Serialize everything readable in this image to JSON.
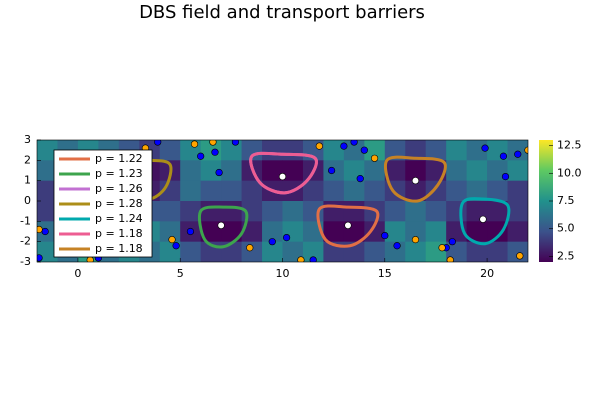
{
  "chart_data": {
    "type": "heatmap",
    "title": "DBS field and transport barriers",
    "colormap": "viridis",
    "clim": [
      2,
      13
    ],
    "cticks": [
      2.5,
      {
        "value": 5,
        "label": "5.0"
      },
      7.5,
      {
        "value": 10,
        "label": "10.0"
      },
      12.5
    ],
    "xlim": [
      -2,
      22
    ],
    "xticks": [
      0,
      5,
      10,
      15,
      20
    ],
    "ylim": [
      -3,
      3
    ],
    "yticks": [
      -3,
      -2,
      -1,
      0,
      1,
      2,
      3
    ],
    "grid": false,
    "legend": "topleft",
    "z": [
      [
        7,
        6,
        7,
        6,
        5,
        4,
        5,
        7,
        8,
        7,
        5,
        4,
        4,
        5,
        7,
        6,
        8,
        5,
        4,
        5,
        7,
        6,
        7,
        6
      ],
      [
        6,
        7,
        6,
        5,
        3,
        2.5,
        3,
        6,
        7,
        6,
        3,
        2,
        2,
        3,
        6,
        7,
        6,
        3,
        2,
        3,
        6,
        7,
        6,
        7
      ],
      [
        4,
        5,
        5,
        4,
        3,
        3,
        4,
        6,
        5,
        5,
        4,
        3,
        3,
        4,
        5,
        6,
        5,
        4,
        3,
        4,
        5,
        6,
        5,
        4
      ],
      [
        4,
        4,
        4,
        5,
        6,
        5,
        5,
        4,
        3,
        3,
        4,
        5,
        6,
        5,
        3,
        3,
        4,
        5,
        6,
        5,
        4,
        3,
        3,
        4
      ],
      [
        6,
        7,
        6,
        7,
        6,
        7,
        6,
        3,
        2,
        2,
        3,
        6,
        7,
        6,
        2,
        2,
        3,
        7,
        6,
        7,
        3,
        2,
        2,
        3
      ],
      [
        7,
        6,
        8,
        6,
        7,
        6,
        7,
        5,
        4,
        4,
        5,
        7,
        6,
        7,
        4,
        4,
        5,
        6,
        7,
        8,
        5,
        4,
        4,
        5
      ]
    ],
    "series": [
      {
        "name": "p = 1.22",
        "color": "#e26f46",
        "x": [
          11.8,
          13.2,
          14.6,
          14.3,
          13.3,
          12.1
        ],
        "y": [
          -0.4,
          -0.3,
          -0.5,
          -1.5,
          -2.2,
          -1.9
        ]
      },
      {
        "name": "p = 1.23",
        "color": "#3da44d",
        "x": [
          6.0,
          7.1,
          8.2,
          8.0,
          7.1,
          6.2
        ],
        "y": [
          -0.5,
          -0.3,
          -0.5,
          -1.6,
          -2.25,
          -1.9
        ]
      },
      {
        "name": "p = 1.26",
        "color": "#c271d2",
        "x": [
          8.5,
          10.0,
          11.6,
          11.2,
          10.1,
          8.9
        ],
        "y": [
          2.2,
          2.3,
          2.1,
          1.0,
          0.4,
          0.9
        ]
      },
      {
        "name": "p = 1.28",
        "color": "#ac8e18",
        "x": [
          2.3,
          3.5,
          4.5,
          4.3,
          3.5,
          2.6
        ],
        "y": [
          1.9,
          2.0,
          1.8,
          0.7,
          0.1,
          0.5
        ]
      },
      {
        "name": "p = 1.24",
        "color": "#00a9ad",
        "x": [
          18.8,
          19.8,
          21.0,
          20.8,
          19.9,
          18.9
        ],
        "y": [
          -0.1,
          0.1,
          -0.2,
          -1.4,
          -2.1,
          -1.6
        ]
      },
      {
        "name": "p = 1.18",
        "color": "#ed5d92",
        "x": [
          8.5,
          10.0,
          11.6,
          11.2,
          10.1,
          8.9
        ],
        "y": [
          2.2,
          2.3,
          2.1,
          1.0,
          0.4,
          0.9
        ]
      },
      {
        "name": "p = 1.18",
        "color": "#c68225",
        "x": [
          15.1,
          16.5,
          17.9,
          17.6,
          16.6,
          15.4
        ],
        "y": [
          2.0,
          2.1,
          1.9,
          0.8,
          0.0,
          0.5
        ]
      }
    ],
    "points": [
      {
        "color": "#0000ff",
        "x": [
          3.9,
          6.0,
          6.7,
          7.7,
          6.9,
          13.0,
          13.5,
          14.0,
          12.4,
          13.8,
          19.9,
          20.8,
          21.5,
          20.9,
          4.8,
          5.5,
          9.5,
          10.2,
          15.0,
          15.6,
          18.0,
          18.3,
          -1.9,
          -1.6,
          11.5,
          1.0
        ],
        "y": [
          2.9,
          2.2,
          2.4,
          2.9,
          1.4,
          2.7,
          2.9,
          2.5,
          1.5,
          1.1,
          2.6,
          2.2,
          2.3,
          1.2,
          -2.2,
          -1.5,
          -2.0,
          -1.8,
          -1.7,
          -2.2,
          -2.3,
          -2.0,
          -2.8,
          -1.5,
          -2.9,
          -2.8
        ]
      },
      {
        "color": "#ffa500",
        "x": [
          3.3,
          5.7,
          6.6,
          11.8,
          14.5,
          22.0,
          4.6,
          8.4,
          10.9,
          16.5,
          17.8,
          18.2,
          -1.9,
          0.6,
          21.6
        ],
        "y": [
          2.6,
          2.8,
          2.9,
          2.7,
          2.1,
          2.5,
          -1.9,
          -2.3,
          -2.9,
          -1.9,
          -2.3,
          -2.9,
          -1.4,
          -2.9,
          -2.7
        ]
      },
      {
        "color": "#ffffff",
        "x": [
          10.0,
          16.5,
          7.0,
          13.2,
          19.8
        ],
        "y": [
          1.2,
          1.0,
          -1.2,
          -1.2,
          -0.9
        ]
      }
    ]
  }
}
